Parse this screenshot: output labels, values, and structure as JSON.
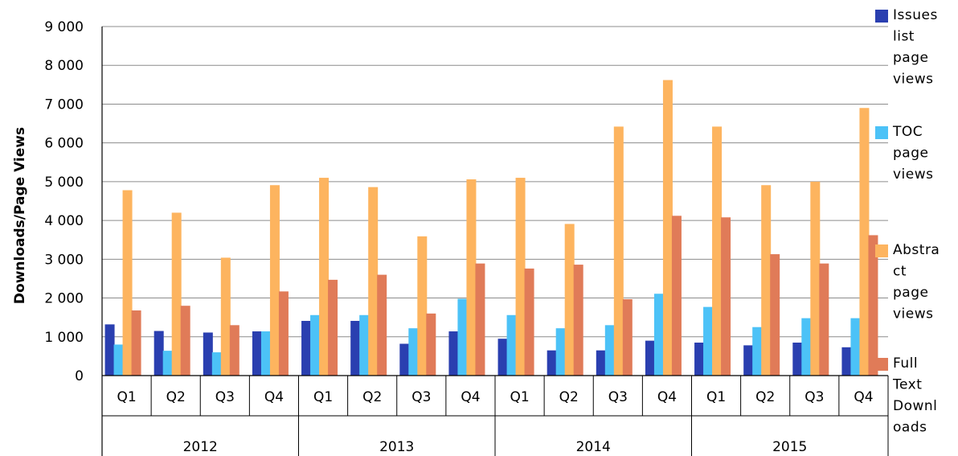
{
  "chart_data": {
    "type": "bar",
    "ylabel": "Downloads/Page  Views",
    "ylim": [
      0,
      9000
    ],
    "yticks": [
      0,
      1000,
      2000,
      3000,
      4000,
      5000,
      6000,
      7000,
      8000,
      9000
    ],
    "ytick_labels": [
      "0",
      "1 000",
      "2 000",
      "3 000",
      "4 000",
      "5 000",
      "6 000",
      "7 000",
      "8 000",
      "9 000"
    ],
    "grid": true,
    "legend_position": "right",
    "quarters": [
      "Q1",
      "Q2",
      "Q3",
      "Q4",
      "Q1",
      "Q2",
      "Q3",
      "Q4",
      "Q1",
      "Q2",
      "Q3",
      "Q4",
      "Q1",
      "Q2",
      "Q3",
      "Q4"
    ],
    "years": [
      "2012",
      "2013",
      "2014",
      "2015"
    ],
    "series": [
      {
        "name": "Issues list page views",
        "legend_lines": [
          "Issues",
          "list",
          "page",
          "views"
        ],
        "color": "#2a3fb0",
        "values": [
          1320,
          1150,
          1110,
          1140,
          1410,
          1410,
          820,
          1140,
          950,
          650,
          650,
          900,
          850,
          780,
          850,
          730
        ]
      },
      {
        "name": "TOC page views",
        "legend_lines": [
          "TOC",
          "page",
          "views"
        ],
        "color": "#4cc2f7",
        "values": [
          800,
          640,
          600,
          1140,
          1560,
          1560,
          1220,
          1980,
          1560,
          1220,
          1300,
          2110,
          1770,
          1250,
          1480,
          1480
        ]
      },
      {
        "name": "Abstract page views",
        "legend_lines": [
          "Abstra",
          "ct",
          "page",
          "views"
        ],
        "color": "#fdb45f",
        "values": [
          4780,
          4200,
          3040,
          4910,
          5100,
          4860,
          3590,
          5060,
          5100,
          3910,
          6420,
          7620,
          6420,
          4910,
          5000,
          6900
        ]
      },
      {
        "name": "Full Text Downloads",
        "legend_lines": [
          "Full",
          "Text",
          "Downl",
          "oads"
        ],
        "color": "#e07b58",
        "values": [
          1680,
          1800,
          1300,
          2170,
          2470,
          2600,
          1600,
          2890,
          2760,
          2860,
          1970,
          4120,
          4080,
          3130,
          2890,
          3620
        ]
      }
    ]
  }
}
